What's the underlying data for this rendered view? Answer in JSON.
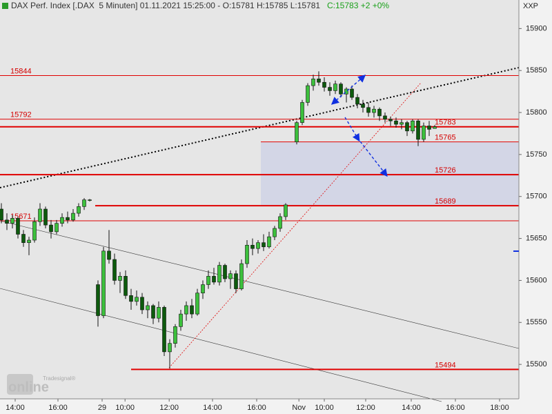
{
  "header": {
    "title": "DAX Perf. Index [.DAX  5 Minuten] 01.11.2021 15:25:00 - O:15781 H:15785 L:15781",
    "change": "C:15783 +2 +0%",
    "corner": "XXP",
    "logo": "online",
    "logo_small": "Tradesignal®"
  },
  "chart_data": {
    "type": "candlestick",
    "up_color": "#3cc03c",
    "down_color": "#0d5a0d",
    "x": [
      0,
      1,
      2,
      3,
      4,
      5,
      6,
      7,
      8,
      9,
      10,
      11,
      12,
      13,
      14,
      15,
      16,
      17.5,
      18.5,
      19.5,
      20.5,
      21.5,
      22.5,
      23.5,
      24.5,
      25.5,
      26.5,
      27.5,
      28.5,
      29.5,
      30.5,
      31.5,
      32.5,
      33.5,
      34.5,
      35.5,
      36.5,
      37.5,
      38.5,
      39.5,
      40.5,
      41.5,
      42.5,
      43.5,
      44.5,
      45.5,
      46.5,
      47.5,
      48.5,
      49.5,
      50.5,
      51.5,
      53.5,
      54.5,
      55.5,
      56.5,
      57.5,
      58.5,
      59.5,
      60.5,
      61.5,
      62.5,
      63.5,
      64.5,
      65.5,
      66.5,
      67.5,
      68.5,
      69.5,
      70.5,
      71.5,
      72.5,
      73.5,
      74.5,
      75.5,
      76.5,
      77.5,
      78.5
    ],
    "open": [
      15685,
      15672,
      15668,
      15674,
      15655,
      15645,
      15648,
      15670,
      15685,
      15666,
      15658,
      15668,
      15675,
      15672,
      15680,
      15688,
      15696,
      15595,
      15558,
      15635,
      15625,
      15600,
      15605,
      15582,
      15575,
      15580,
      15565,
      15570,
      15555,
      15568,
      15515,
      15525,
      15545,
      15560,
      15570,
      15560,
      15585,
      15595,
      15605,
      15598,
      15618,
      15602,
      15608,
      15590,
      15620,
      15642,
      15638,
      15645,
      15640,
      15652,
      15662,
      15676,
      15765,
      15788,
      15812,
      15832,
      15840,
      15836,
      15830,
      15826,
      15834,
      15822,
      15828,
      15818,
      15810,
      15806,
      15800,
      15804,
      15796,
      15792,
      15790,
      15786,
      15788,
      15778,
      15790,
      15768,
      15784,
      15781
    ],
    "high": [
      15692,
      15680,
      15678,
      15676,
      15660,
      15652,
      15675,
      15692,
      15688,
      15672,
      15672,
      15680,
      15682,
      15685,
      15692,
      15698,
      15697,
      15600,
      15640,
      15660,
      15632,
      15610,
      15612,
      15590,
      15588,
      15585,
      15575,
      15572,
      15575,
      15570,
      15530,
      15548,
      15565,
      15575,
      15578,
      15590,
      15600,
      15612,
      15615,
      15622,
      15620,
      15612,
      15612,
      15625,
      15648,
      15650,
      15648,
      15655,
      15658,
      15665,
      15680,
      15692,
      15790,
      15815,
      15835,
      15845,
      15849,
      15842,
      15836,
      15838,
      15836,
      15830,
      15832,
      15822,
      15815,
      15812,
      15808,
      15806,
      15800,
      15795,
      15794,
      15792,
      15790,
      15792,
      15792,
      15788,
      15790,
      15785
    ],
    "low": [
      15668,
      15660,
      15662,
      15650,
      15640,
      15630,
      15645,
      15665,
      15662,
      15650,
      15655,
      15664,
      15668,
      15670,
      15676,
      15684,
      15694,
      15545,
      15555,
      15620,
      15595,
      15585,
      15578,
      15565,
      15570,
      15560,
      15555,
      15548,
      15550,
      15510,
      15495,
      15520,
      15540,
      15552,
      15555,
      15558,
      15578,
      15590,
      15595,
      15594,
      15598,
      15590,
      15585,
      15588,
      15615,
      15630,
      15632,
      15635,
      15638,
      15648,
      15658,
      15672,
      15762,
      15785,
      15808,
      15826,
      15832,
      15825,
      15820,
      15822,
      15818,
      15812,
      15815,
      15805,
      15800,
      15795,
      15794,
      15790,
      15788,
      15784,
      15782,
      15780,
      15772,
      15775,
      15760,
      15765,
      15772,
      15781
    ],
    "close": [
      15672,
      15668,
      15674,
      15655,
      15645,
      15648,
      15670,
      15685,
      15666,
      15658,
      15668,
      15675,
      15672,
      15680,
      15688,
      15696,
      15696,
      15558,
      15635,
      15625,
      15600,
      15605,
      15582,
      15575,
      15580,
      15565,
      15570,
      15555,
      15568,
      15515,
      15525,
      15545,
      15560,
      15570,
      15560,
      15585,
      15595,
      15605,
      15598,
      15618,
      15602,
      15608,
      15590,
      15620,
      15642,
      15638,
      15645,
      15640,
      15652,
      15662,
      15676,
      15690,
      15788,
      15812,
      15832,
      15840,
      15836,
      15830,
      15826,
      15834,
      15822,
      15828,
      15818,
      15810,
      15806,
      15800,
      15804,
      15796,
      15792,
      15790,
      15786,
      15788,
      15778,
      15790,
      15768,
      15784,
      15780,
      15783
    ],
    "xlim": [
      -0.25,
      93.75
    ],
    "xticks": [
      {
        "value": 2.5,
        "label": "14:00"
      },
      {
        "value": 10.25,
        "label": "16:00"
      },
      {
        "value": 18.25,
        "label": "29"
      },
      {
        "value": 22.4,
        "label": "10:00"
      },
      {
        "value": 30.4,
        "label": "12:00"
      },
      {
        "value": 38.25,
        "label": "14:00"
      },
      {
        "value": 46.25,
        "label": "16:00"
      },
      {
        "value": 53.9,
        "label": "Nov"
      },
      {
        "value": 58.5,
        "label": "10:00"
      },
      {
        "value": 66,
        "label": "12:00"
      },
      {
        "value": 74.25,
        "label": "14:00"
      },
      {
        "value": 82.25,
        "label": "16:00"
      },
      {
        "value": 90.25,
        "label": "18:00"
      }
    ],
    "ylim": [
      15459,
      15934
    ],
    "yticks": [
      15500,
      15550,
      15600,
      15650,
      15700,
      15750,
      15800,
      15850,
      15900
    ],
    "levels": [
      15844,
      15792,
      15783,
      15765,
      15726,
      15689,
      15671,
      15494
    ],
    "level_color": "#e00000"
  }
}
